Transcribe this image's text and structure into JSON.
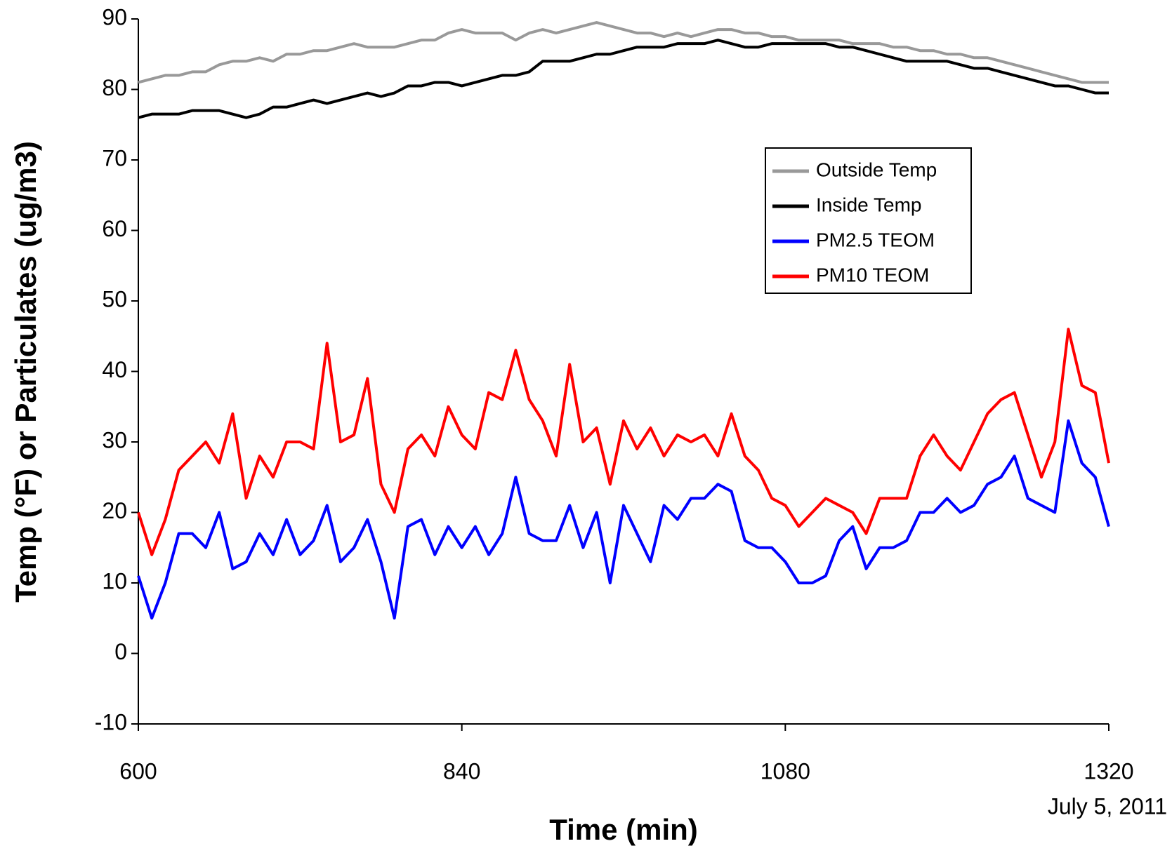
{
  "chart_data": {
    "type": "line",
    "x_label": "Time (min)",
    "y_label": "Temp (°F) or Particulates (ug/m3)",
    "annotation": "July 5, 2011",
    "x": [
      600,
      610,
      620,
      630,
      640,
      650,
      660,
      670,
      680,
      690,
      700,
      710,
      720,
      730,
      740,
      750,
      760,
      770,
      780,
      790,
      800,
      810,
      820,
      830,
      840,
      850,
      860,
      870,
      880,
      890,
      900,
      910,
      920,
      930,
      940,
      950,
      960,
      970,
      980,
      990,
      1000,
      1010,
      1020,
      1030,
      1040,
      1050,
      1060,
      1070,
      1080,
      1090,
      1100,
      1110,
      1120,
      1130,
      1140,
      1150,
      1160,
      1170,
      1180,
      1190,
      1200,
      1210,
      1220,
      1230,
      1240,
      1250,
      1260,
      1270,
      1280,
      1290,
      1300,
      1310,
      1320
    ],
    "series": [
      {
        "name": "Outside Temp",
        "color": "#999999",
        "values": [
          81,
          81.5,
          82,
          82,
          82.5,
          82.5,
          83.5,
          84,
          84,
          84.5,
          84,
          85,
          85,
          85.5,
          85.5,
          86,
          86.5,
          86,
          86,
          86,
          86.5,
          87,
          87,
          88,
          88.5,
          88,
          88,
          88,
          87,
          88,
          88.5,
          88,
          88.5,
          89,
          89.5,
          89,
          88.5,
          88,
          88,
          87.5,
          88,
          87.5,
          88,
          88.5,
          88.5,
          88,
          88,
          87.5,
          87.5,
          87,
          87,
          87,
          87,
          86.5,
          86.5,
          86.5,
          86,
          86,
          85.5,
          85.5,
          85,
          85,
          84.5,
          84.5,
          84,
          83.5,
          83,
          82.5,
          82,
          81.5,
          81,
          81,
          81
        ]
      },
      {
        "name": "Inside Temp",
        "color": "#000000",
        "values": [
          76,
          76.5,
          76.5,
          76.5,
          77,
          77,
          77,
          76.5,
          76,
          76.5,
          77.5,
          77.5,
          78,
          78.5,
          78,
          78.5,
          79,
          79.5,
          79,
          79.5,
          80.5,
          80.5,
          81,
          81,
          80.5,
          81,
          81.5,
          82,
          82,
          82.5,
          84,
          84,
          84,
          84.5,
          85,
          85,
          85.5,
          86,
          86,
          86,
          86.5,
          86.5,
          86.5,
          87,
          86.5,
          86,
          86,
          86.5,
          86.5,
          86.5,
          86.5,
          86.5,
          86,
          86,
          85.5,
          85,
          84.5,
          84,
          84,
          84,
          84,
          83.5,
          83,
          83,
          82.5,
          82,
          81.5,
          81,
          80.5,
          80.5,
          80,
          79.5,
          79.5
        ]
      },
      {
        "name": "PM2.5 TEOM",
        "color": "#0000ff",
        "values": [
          11,
          5,
          10,
          17,
          17,
          15,
          20,
          12,
          13,
          17,
          14,
          19,
          14,
          16,
          21,
          13,
          15,
          19,
          13,
          5,
          18,
          19,
          14,
          18,
          15,
          18,
          14,
          17,
          25,
          17,
          16,
          16,
          21,
          15,
          20,
          10,
          21,
          17,
          13,
          21,
          19,
          22,
          22,
          24,
          23,
          16,
          15,
          15,
          13,
          10,
          10,
          11,
          16,
          18,
          12,
          15,
          15,
          16,
          20,
          20,
          22,
          20,
          21,
          24,
          25,
          28,
          22,
          21,
          20,
          33,
          27,
          25,
          18
        ]
      },
      {
        "name": "PM10 TEOM",
        "color": "#ff0000",
        "values": [
          20,
          14,
          19,
          26,
          28,
          30,
          27,
          34,
          22,
          28,
          25,
          30,
          30,
          29,
          44,
          30,
          31,
          39,
          24,
          20,
          29,
          31,
          28,
          35,
          31,
          29,
          37,
          36,
          43,
          36,
          33,
          28,
          41,
          30,
          32,
          24,
          33,
          29,
          32,
          28,
          31,
          30,
          31,
          28,
          34,
          28,
          26,
          22,
          21,
          18,
          20,
          22,
          21,
          20,
          17,
          22,
          22,
          22,
          28,
          31,
          28,
          26,
          30,
          34,
          36,
          37,
          31,
          25,
          30,
          46,
          38,
          37,
          27
        ]
      }
    ],
    "xlim": [
      600,
      1320
    ],
    "xticks": [
      600,
      840,
      1080,
      1320
    ],
    "ylim": [
      -10,
      90
    ],
    "yticks": [
      -10,
      0,
      10,
      20,
      30,
      40,
      50,
      60,
      70,
      80,
      90
    ],
    "grid": false,
    "legend": "upper-right"
  }
}
